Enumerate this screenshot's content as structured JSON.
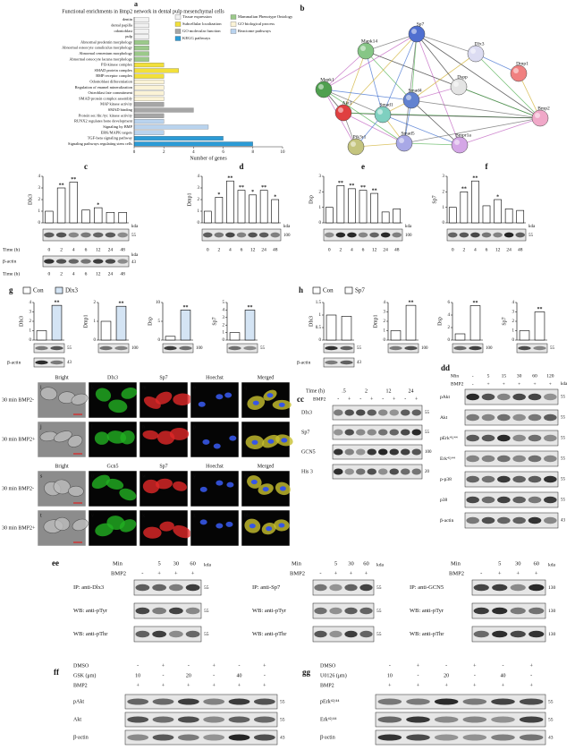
{
  "a": {
    "letter": "a",
    "title": "Functional enrichments in Bmp2 network in dental pulp mesenchymal cells",
    "categories": [
      "dentin",
      "dental papilla",
      "odontoblast",
      "pulp",
      "Abnormal predentin morphology",
      "Abnormal osteocyte canaliculus morphology",
      "Abnormal cementum morphology",
      "Abnormal osteocyte lacuna morphology",
      "PI3-kinase complex",
      "SMAD protein complex",
      "BMP receptor complex",
      "Odontoblast differentiation",
      "Regulation of enamel mineralization",
      "Osteoblast fate commitment",
      "SMAD protein complex assembly",
      "MAP kinase activity",
      "SMAD binding",
      "Protein ser./thr./tyr. kinase activity",
      "RUNX2 regulates bone development",
      "Signaling by BMP",
      "ERK/MAPK targets",
      "TGF-beta signaling pathway",
      "Signaling pathways regulating stem cells"
    ],
    "values": [
      1,
      1,
      1,
      1,
      1,
      1,
      1,
      1,
      2,
      3,
      2,
      2,
      2,
      2,
      2,
      2,
      4,
      2,
      2,
      5,
      2,
      6,
      8
    ],
    "colors": [
      "#f2f2f2",
      "#f2f2f2",
      "#f2f2f2",
      "#f2f2f2",
      "#9bc98a",
      "#9bc98a",
      "#9bc98a",
      "#9bc98a",
      "#f2e03a",
      "#f2e03a",
      "#f2e03a",
      "#fbf3d6",
      "#fbf3d6",
      "#fbf3d6",
      "#fbf3d6",
      "#a6a6a6",
      "#a6a6a6",
      "#a6a6a6",
      "#b9d3ee",
      "#b9d3ee",
      "#b9d3ee",
      "#2b9bd6",
      "#2b9bd6"
    ],
    "legend": [
      {
        "name": "Tissue expression",
        "color": "#f2f2f2"
      },
      {
        "name": "Mammalian Phenotype Ontology",
        "color": "#9bc98a"
      },
      {
        "name": "Subcellular localization",
        "color": "#f2e03a"
      },
      {
        "name": "GO biological process",
        "color": "#fbf3d6"
      },
      {
        "name": "GO molecular function",
        "color": "#a6a6a6"
      },
      {
        "name": "Reactome pathways",
        "color": "#b9d3ee"
      },
      {
        "name": "KEGG pathways",
        "color": "#2b9bd6"
      }
    ],
    "xlim": [
      0,
      10
    ],
    "xticks": [
      0,
      2,
      4,
      6,
      8,
      10
    ],
    "xlabel": "Number of genes"
  },
  "b": {
    "letter": "b",
    "nodes": [
      {
        "label": "Mapk14",
        "color": "#86c686"
      },
      {
        "label": "Sp7",
        "color": "#4f6fd0"
      },
      {
        "label": "Dlx3",
        "color": "#dcdcf2"
      },
      {
        "label": "Mapk1",
        "color": "#4fa04f"
      },
      {
        "label": "Smad4",
        "color": "#6282d0"
      },
      {
        "label": "Dspp",
        "color": "#e4e4e4"
      },
      {
        "label": "Dmp1",
        "color": "#f08080"
      },
      {
        "label": "Akt1",
        "color": "#e04040"
      },
      {
        "label": "Smad1",
        "color": "#7fd0c0"
      },
      {
        "label": "Bmp2",
        "color": "#f0a8c8"
      },
      {
        "label": "Pik3r1",
        "color": "#c4c47e"
      },
      {
        "label": "Smad5",
        "color": "#a8a8e6"
      },
      {
        "label": "Bmpr1a",
        "color": "#d4a6e6"
      }
    ]
  },
  "time_charts": [
    {
      "letter": "c",
      "ylabel": "Dlx3",
      "ylim": [
        0,
        4
      ],
      "yticks": [
        0,
        1,
        2,
        3,
        4
      ],
      "values": [
        1,
        3,
        3.5,
        1.1,
        1.3,
        0.9,
        0.9
      ],
      "stars": [
        null,
        "**",
        "**",
        null,
        "*",
        null,
        null
      ],
      "kda_label": "kda",
      "blot_kda": 55,
      "time_label": "Time (h)",
      "times": [
        "0",
        "2",
        "4",
        "6",
        "12",
        "24",
        "48"
      ],
      "actin": {
        "label": "β-actin",
        "kda_label": "kda",
        "kda": 43
      }
    },
    {
      "letter": "d",
      "ylabel": "Dmp1",
      "ylim": [
        0,
        4
      ],
      "yticks": [
        0,
        1,
        2,
        3,
        4
      ],
      "values": [
        1,
        2.2,
        3.6,
        2.8,
        2.4,
        2.8,
        2
      ],
      "stars": [
        null,
        "*",
        "**",
        "**",
        "*",
        "**",
        "*"
      ],
      "kda_label": "kda",
      "blot_kda": 100,
      "times": [
        "0",
        "2",
        "4",
        "6",
        "12",
        "24",
        "48"
      ]
    },
    {
      "letter": "e",
      "ylabel": "Dsp",
      "ylim": [
        0,
        3
      ],
      "yticks": [
        0,
        1,
        2,
        3
      ],
      "values": [
        1,
        2.4,
        2.2,
        2.1,
        1.9,
        0.7,
        0.9
      ],
      "stars": [
        null,
        "**",
        "**",
        "**",
        "**",
        null,
        null
      ],
      "kda_label": "kda",
      "blot_kda": 100,
      "times": [
        "0",
        "2",
        "4",
        "6",
        "12",
        "24",
        "48"
      ]
    },
    {
      "letter": "f",
      "ylabel": "Sp7",
      "ylim": [
        0,
        3
      ],
      "yticks": [
        0,
        1,
        2,
        3
      ],
      "values": [
        1,
        2,
        2.7,
        1.1,
        1.5,
        0.9,
        0.8
      ],
      "stars": [
        null,
        "**",
        "**",
        null,
        "*",
        null,
        null
      ],
      "kda_label": "kda",
      "blot_kda": 55,
      "times": [
        "0",
        "2",
        "4",
        "6",
        "12",
        "24",
        "48"
      ]
    }
  ],
  "g": {
    "letter": "g",
    "legend": [
      {
        "name": "Con",
        "color": "#ffffff"
      },
      {
        "name": "Dlx3",
        "color": "#d4e4f4"
      }
    ],
    "charts": [
      {
        "ylabel": "Dlx3",
        "ylim": [
          0,
          4
        ],
        "yticks": [
          0,
          1,
          2,
          3,
          4
        ],
        "values": [
          1,
          3.7
        ],
        "stars": [
          null,
          "**"
        ],
        "kda": 55
      },
      {
        "ylabel": "Dmp1",
        "ylim": [
          0,
          2
        ],
        "yticks": [
          0,
          1,
          2
        ],
        "values": [
          1,
          1.8
        ],
        "stars": [
          null,
          "**"
        ],
        "kda": 100
      },
      {
        "ylabel": "Dsp",
        "ylim": [
          0,
          10
        ],
        "yticks": [
          0,
          5,
          10
        ],
        "values": [
          1,
          8
        ],
        "stars": [
          null,
          "**"
        ],
        "kda": 100
      },
      {
        "ylabel": "Sp7",
        "ylim": [
          0,
          5
        ],
        "yticks": [
          0,
          1,
          2,
          3,
          4,
          5
        ],
        "values": [
          1,
          4
        ],
        "stars": [
          null,
          "**"
        ],
        "kda": 55
      }
    ],
    "actin_label": "β-actin",
    "actin_kda": 43
  },
  "h": {
    "letter": "h",
    "legend": [
      {
        "name": "Con",
        "color": "#ffffff"
      },
      {
        "name": "Sp7",
        "color": "#ffffff"
      }
    ],
    "charts": [
      {
        "ylabel": "Dlx3",
        "ylim": [
          0,
          1.5
        ],
        "yticks": [
          0,
          0.5,
          1,
          1.5
        ],
        "values": [
          1,
          0.95
        ],
        "stars": [
          null,
          null
        ],
        "kda": 55
      },
      {
        "ylabel": "Dmp1",
        "ylim": [
          0,
          4
        ],
        "yticks": [
          0,
          1,
          2,
          3,
          4
        ],
        "values": [
          1,
          3.7
        ],
        "stars": [
          null,
          "**"
        ],
        "kda": 100
      },
      {
        "ylabel": "Dsp",
        "ylim": [
          0,
          6
        ],
        "yticks": [
          0,
          2,
          4,
          6
        ],
        "values": [
          1,
          5.5
        ],
        "stars": [
          null,
          "**"
        ],
        "kda": 100
      },
      {
        "ylabel": "Sp7",
        "ylim": [
          0,
          4
        ],
        "yticks": [
          0,
          1,
          2,
          3,
          4
        ],
        "values": [
          1,
          3
        ],
        "stars": [
          null,
          "**"
        ],
        "kda": 55
      }
    ],
    "actin_label": "β-actin",
    "actin_kda": 43
  },
  "micro": {
    "blocks": [
      {
        "headers": [
          "Bright",
          "Dlx3",
          "Sp7",
          "Hoechst",
          "Merged"
        ],
        "rows": [
          {
            "label": "30 min BMP2-",
            "letters": [
              "i",
              "k",
              "m",
              "o",
              "q"
            ]
          },
          {
            "label": "30 min BMP2+",
            "letters": [
              "j",
              "l",
              "n",
              "p",
              "r"
            ]
          }
        ]
      },
      {
        "headers": [
          "Bright",
          "Gcn5",
          "Sp7",
          "Hoechst",
          "Merged"
        ],
        "rows": [
          {
            "label": "30 min BMP2-",
            "letters": [
              "s",
              "u",
              "w",
              "y",
              "aa"
            ]
          },
          {
            "label": "30 min BMP2+",
            "letters": [
              "t",
              "v",
              "x",
              "z",
              "bb"
            ]
          }
        ]
      }
    ]
  },
  "cc": {
    "letter": "cc",
    "time_label": "Time (h)",
    "times": [
      ".5",
      "2",
      "12",
      "24"
    ],
    "bmp_label": "BMP2",
    "bmp": [
      "-",
      "+",
      "-",
      "+",
      "-",
      "+",
      "-",
      "+"
    ],
    "rows": [
      {
        "label": "Dlx3",
        "kda": 55
      },
      {
        "label": "Sp7",
        "kda": 55
      },
      {
        "label": "GCN5",
        "kda": 100
      },
      {
        "label": "His 3",
        "kda": 20
      }
    ]
  },
  "dd": {
    "letter": "dd",
    "min_label": "Min",
    "mins": [
      "-",
      "5",
      "15",
      "30",
      "60",
      "120"
    ],
    "bmp_label": "BMP2",
    "bmp": [
      "-",
      "+",
      "+",
      "+",
      "+",
      "+"
    ],
    "kda_label": "kda",
    "rows": [
      {
        "label": "pAkt",
        "kda": 55
      },
      {
        "label": "Akt",
        "kda": 55
      },
      {
        "label": "pErk⁴²/⁴⁴",
        "kda": 55
      },
      {
        "label": "Erk⁴²/⁴⁴",
        "kda": 55
      },
      {
        "label": "p-p38",
        "kda": 55
      },
      {
        "label": "p38",
        "kda": 55
      },
      {
        "label": "β-actin",
        "kda": 43
      }
    ]
  },
  "ee": {
    "letter": "ee",
    "min_label": "Min",
    "mins": [
      null,
      "5",
      "30",
      "60"
    ],
    "bmp_label": "BMP2",
    "bmp": [
      "-",
      "+",
      "+",
      "+"
    ],
    "kda_label": "kda",
    "panels": [
      {
        "rows": [
          {
            "label": "IP: anti-Dlx3",
            "kda": 55
          },
          {
            "label": "WB: anti-pTyr",
            "kda": 55
          },
          {
            "label": "WB: anti-pThr",
            "kda": 55
          }
        ]
      },
      {
        "rows": [
          {
            "label": "IP: anti-Sp7",
            "kda": 55
          },
          {
            "label": "WB: anti-pTyr",
            "kda": 55
          },
          {
            "label": "WB: anti-pThr",
            "kda": 55
          }
        ]
      },
      {
        "rows": [
          {
            "label": "IP: anti-GCN5",
            "kda": 130
          },
          {
            "label": "WB: anti-pTyr",
            "kda": 130
          },
          {
            "label": "WB: anti-pThr",
            "kda": 130
          }
        ]
      }
    ]
  },
  "ff": {
    "letter": "ff",
    "heads": [
      {
        "label": "DMSO",
        "lanes": [
          "-",
          "+",
          "-",
          "+",
          "-",
          "+"
        ]
      },
      {
        "label": "GSK (μm)",
        "lanes": [
          "10",
          "-",
          "20",
          "-",
          "40",
          "-"
        ]
      },
      {
        "label": "BMP2",
        "lanes": [
          "+",
          "+",
          "+",
          "+",
          "+",
          "+"
        ]
      }
    ],
    "rows": [
      {
        "label": "pAkt",
        "kda": 55
      },
      {
        "label": "Akt",
        "kda": 55
      },
      {
        "label": "β-actin",
        "kda": 43
      }
    ]
  },
  "gg": {
    "letter": "gg",
    "heads": [
      {
        "label": "DMSO",
        "lanes": [
          "-",
          "+",
          "-",
          "+",
          "-",
          "+"
        ]
      },
      {
        "label": "U0126 (μm)",
        "lanes": [
          "10",
          "-",
          "20",
          "-",
          "40",
          "-"
        ]
      },
      {
        "label": "BMP2",
        "lanes": [
          "+",
          "+",
          "+",
          "+",
          "+",
          "+"
        ]
      }
    ],
    "rows": [
      {
        "label": "pErk⁴²/⁴⁴",
        "kda": 55
      },
      {
        "label": "Erk⁴²/⁴⁴",
        "kda": 55
      },
      {
        "label": "β-actin",
        "kda": 43
      }
    ]
  }
}
